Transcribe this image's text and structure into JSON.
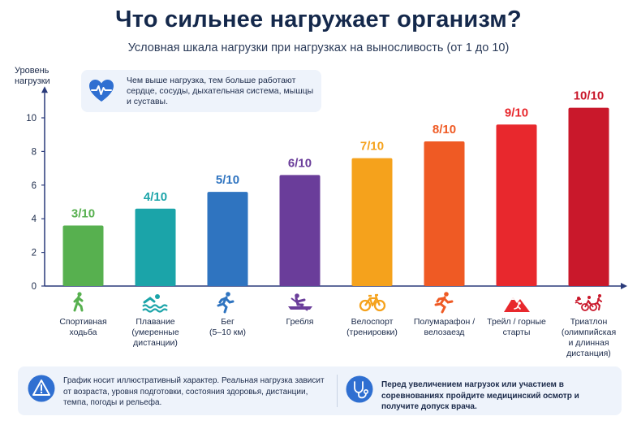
{
  "title": "Что сильнее нагружает организм?",
  "subtitle": "Условная шкала нагрузки при нагрузках на выносливость (от 1 до 10)",
  "info": {
    "icon": "heart-pulse-icon",
    "text": "Чем выше нагрузка, тем больше работают сердце, сосуды, дыхательная система, мышцы и суставы."
  },
  "chart_data": {
    "type": "bar",
    "ylabel": "Уровень нагрузки",
    "xlabel": "",
    "ylim": [
      0,
      11
    ],
    "yticks": [
      0,
      2,
      4,
      6,
      8,
      10
    ],
    "grid": false,
    "categories": [
      "Спортивная ходьба",
      "Плавание (умеренные дистанции)",
      "Бег (5–10 км)",
      "Гребля",
      "Велоспорт (тренировки)",
      "Полумарафон / велозаезд",
      "Трейл / горные старты",
      "Триатлон (олимпийская и длинная дистанция)"
    ],
    "values": [
      3,
      4,
      5,
      6,
      7,
      8,
      9,
      10
    ],
    "labels": [
      "3/10",
      "4/10",
      "5/10",
      "6/10",
      "7/10",
      "8/10",
      "9/10",
      "10/10"
    ],
    "colors": [
      "#57b04f",
      "#1ba4a9",
      "#2f74c0",
      "#6a3d9a",
      "#f5a21c",
      "#ef5a24",
      "#e8282d",
      "#c9182b"
    ]
  },
  "categories_display": [
    {
      "lines": [
        "Спортивная",
        "ходьба"
      ],
      "icon": "walking-icon"
    },
    {
      "lines": [
        "Плавание",
        "(умеренные",
        "дистанции)"
      ],
      "icon": "swimming-icon"
    },
    {
      "lines": [
        "Бег",
        "(5–10 км)"
      ],
      "icon": "running-icon"
    },
    {
      "lines": [
        "Гребля"
      ],
      "icon": "rowing-icon"
    },
    {
      "lines": [
        "Велоспорт",
        "(тренировки)"
      ],
      "icon": "bicycle-icon"
    },
    {
      "lines": [
        "Полумарафон /",
        "велозаезд"
      ],
      "icon": "runner-icon"
    },
    {
      "lines": [
        "Трейл / горные",
        "старты"
      ],
      "icon": "mountain-runner-icon"
    },
    {
      "lines": [
        "Триатлон",
        "(олимпийская",
        "и длинная",
        "дистанция)"
      ],
      "icon": "triathlon-icon"
    }
  ],
  "footer": {
    "left_icon": "warning-icon",
    "left_text": "График носит иллюстративный характер. Реальная нагрузка зависит от возраста, уровня подготовки, состояния здоровья, дистанции, темпа, погоды и рельефа.",
    "right_icon": "stethoscope-icon",
    "right_text": "Перед увеличением нагрузок или участием в соревнованиях пройдите медицинский осмотр и получите допуск врача."
  }
}
